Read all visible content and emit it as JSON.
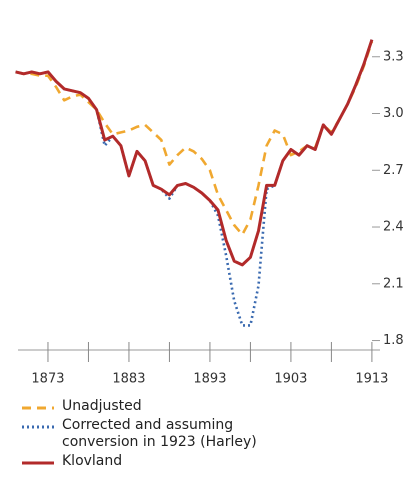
{
  "chart_data": {
    "type": "line",
    "x": [
      1869,
      1870,
      1871,
      1872,
      1873,
      1874,
      1875,
      1876,
      1877,
      1878,
      1879,
      1880,
      1881,
      1882,
      1883,
      1884,
      1885,
      1886,
      1887,
      1888,
      1889,
      1890,
      1891,
      1892,
      1893,
      1894,
      1895,
      1896,
      1897,
      1898,
      1899,
      1900,
      1901,
      1902,
      1903,
      1904,
      1905,
      1906,
      1907,
      1908,
      1909,
      1910,
      1911,
      1912,
      1913
    ],
    "series": [
      {
        "name": "Unadjusted",
        "color": "#f0a830",
        "dash": "dashed",
        "values": [
          3.22,
          3.21,
          3.21,
          3.2,
          3.2,
          3.14,
          3.07,
          3.09,
          3.1,
          3.06,
          3.02,
          2.95,
          2.89,
          2.9,
          2.91,
          2.93,
          2.94,
          2.9,
          2.86,
          2.73,
          2.78,
          2.82,
          2.8,
          2.76,
          2.7,
          2.57,
          2.49,
          2.41,
          2.36,
          2.44,
          2.62,
          2.83,
          2.91,
          2.89,
          2.78,
          2.8,
          2.83,
          2.82,
          2.94,
          2.9,
          2.97,
          3.05,
          3.14,
          3.25,
          3.38
        ]
      },
      {
        "name": "Corrected and assuming conversion in 1923 (Harley)",
        "color": "#3a6ab0",
        "dash": "dotted",
        "values": [
          3.22,
          3.21,
          3.22,
          3.21,
          3.22,
          3.17,
          3.13,
          3.12,
          3.11,
          3.08,
          3.02,
          2.83,
          2.88,
          2.83,
          2.67,
          2.8,
          2.75,
          2.62,
          2.6,
          2.55,
          2.62,
          2.63,
          2.61,
          2.58,
          2.54,
          2.46,
          2.25,
          2.01,
          1.88,
          1.88,
          2.09,
          2.6,
          2.62,
          2.75,
          2.81,
          2.78,
          2.83,
          2.81,
          2.94,
          2.89,
          2.97,
          3.05,
          3.15,
          3.26,
          3.39
        ]
      },
      {
        "name": "Klovland",
        "color": "#b22a2a",
        "dash": "solid",
        "values": [
          3.22,
          3.21,
          3.22,
          3.21,
          3.22,
          3.17,
          3.13,
          3.12,
          3.11,
          3.08,
          3.02,
          2.86,
          2.88,
          2.83,
          2.67,
          2.8,
          2.75,
          2.62,
          2.6,
          2.57,
          2.62,
          2.63,
          2.61,
          2.58,
          2.54,
          2.49,
          2.33,
          2.22,
          2.2,
          2.24,
          2.38,
          2.62,
          2.62,
          2.75,
          2.81,
          2.78,
          2.83,
          2.81,
          2.94,
          2.89,
          2.97,
          3.05,
          3.15,
          3.26,
          3.39
        ]
      }
    ],
    "xlim": [
      1869.3,
      1914
    ],
    "xticks": [
      1873,
      1883,
      1893,
      1903,
      1913
    ],
    "xminorticks": [
      1878,
      1888,
      1898,
      1908
    ],
    "ylim": [
      1.75,
      3.6
    ],
    "yticks": [
      {
        "value": 1.8,
        "label": "1.8"
      },
      {
        "value": 2.1,
        "label": "2.1"
      },
      {
        "value": 2.4,
        "label": "2.4"
      },
      {
        "value": 2.7,
        "label": "2.7"
      },
      {
        "value": 3.0,
        "label": "3.0"
      },
      {
        "value": 3.3,
        "label": "3.3"
      }
    ],
    "y_axis_side": "right",
    "legend": "bottom"
  }
}
